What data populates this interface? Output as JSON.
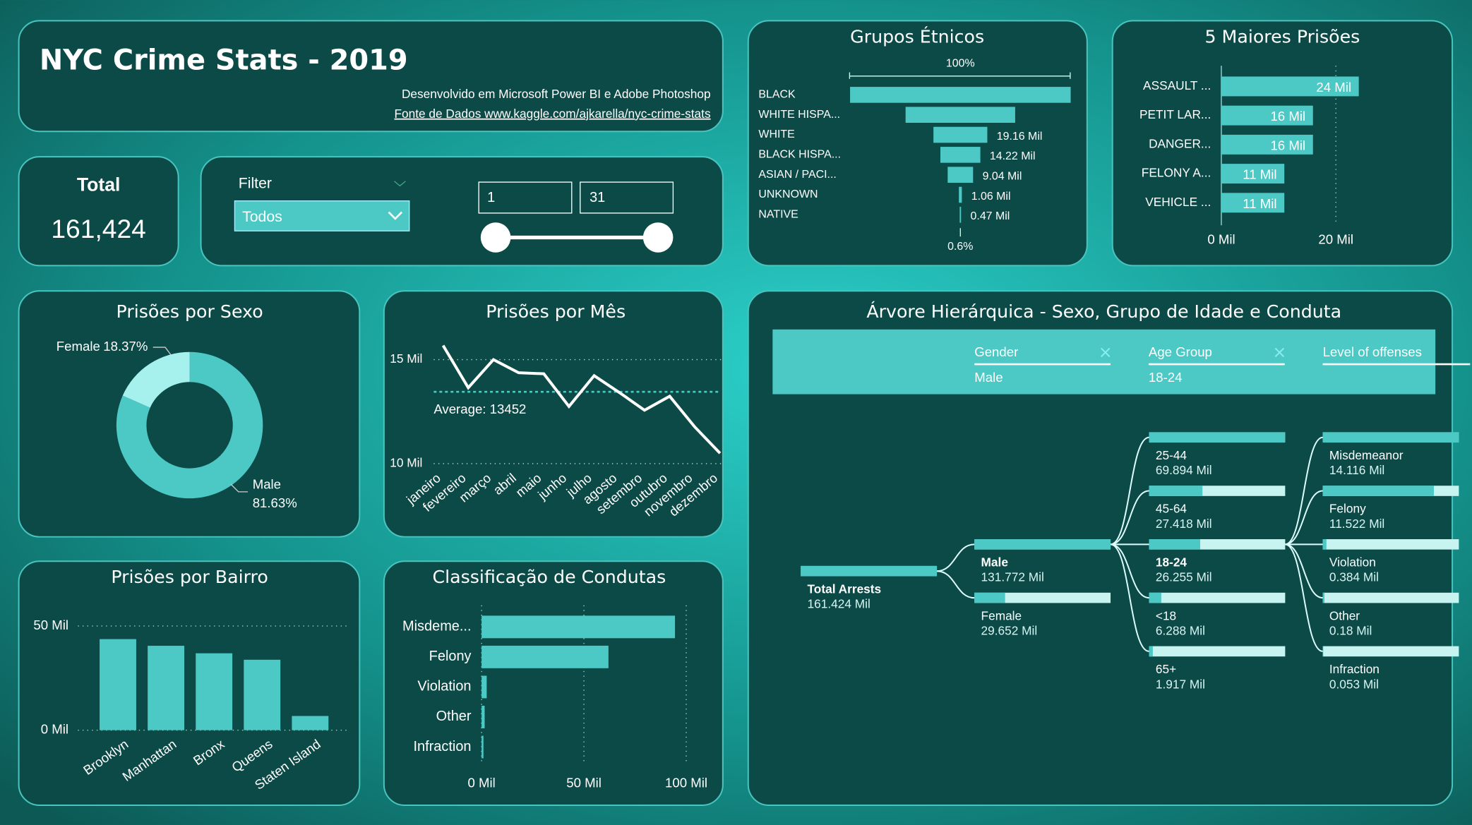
{
  "header": {
    "title": "NYC Crime Stats - 2019",
    "subtitle": "Desenvolvido em Microsoft Power BI e Adobe Photoshop",
    "source": "Fonte de Dados www.kaggle.com/ajkarella/nyc-crime-stats"
  },
  "total": {
    "label": "Total",
    "value": "161,424"
  },
  "filter": {
    "label": "Filter",
    "selected": "Todos",
    "range_from": "1",
    "range_to": "31"
  },
  "chart_data": [
    {
      "type": "funnel",
      "title": "Grupos Étnicos",
      "top_label": "100%",
      "bottom_label": "0.6%",
      "color": "#4cc9c5",
      "categories": [
        "BLACK",
        "WHITE HISPA...",
        "WHITE",
        "BLACK HISPA...",
        "ASIAN / PACI...",
        "UNKNOWN",
        "NATIVE"
      ],
      "values": [
        78.5,
        39,
        19.16,
        14.22,
        9.04,
        1.06,
        0.47
      ],
      "value_labels": [
        null,
        null,
        "19.16 Mil",
        "14.22 Mil",
        "9.04 Mil",
        "1.06 Mil",
        "0.47 Mil"
      ]
    },
    {
      "type": "hbar",
      "title": "5 Maiores Prisões",
      "color": "#4cc9c5",
      "categories": [
        "ASSAULT ...",
        "PETIT LAR...",
        "DANGER...",
        "FELONY A...",
        "VEHICLE ..."
      ],
      "values": [
        24,
        16,
        16,
        11,
        11
      ],
      "value_labels": [
        "24 Mil",
        "16 Mil",
        "16 Mil",
        "11 Mil",
        "11 Mil"
      ],
      "xlim": [
        0,
        35
      ],
      "xticks": [
        {
          "value": 0,
          "label": "0 Mil"
        },
        {
          "value": 20,
          "label": "20 Mil"
        }
      ]
    },
    {
      "type": "donut",
      "title": "Prisões por Sexo",
      "categories": [
        "Male",
        "Female"
      ],
      "values": [
        81.63,
        18.37
      ],
      "value_labels": [
        "81.63%",
        "18.37%"
      ],
      "colors": [
        "#4cc9c5",
        "#a6f1ee"
      ]
    },
    {
      "type": "line",
      "title": "Prisões por Mês",
      "color": "#ffffff",
      "categories": [
        "janeiro",
        "fevereiro",
        "março",
        "abril",
        "maio",
        "junho",
        "julho",
        "agosto",
        "setembro",
        "outubro",
        "novembro",
        "dezembro"
      ],
      "values": [
        15.68,
        13.65,
        15.0,
        14.37,
        14.32,
        12.75,
        14.23,
        13.42,
        12.57,
        13.24,
        11.76,
        10.5
      ],
      "average": {
        "value": 13.452,
        "label": "Average: 13452"
      },
      "ylim": [
        10,
        16
      ],
      "yticks": [
        {
          "value": 10,
          "label": "10 Mil"
        },
        {
          "value": 15,
          "label": "15 Mil"
        }
      ]
    },
    {
      "type": "bar",
      "title": "Prisões por Bairro",
      "color": "#4cc9c5",
      "categories": [
        "Brooklyn",
        "Manhattan",
        "Bronx",
        "Queens",
        "Staten Island"
      ],
      "values": [
        43.7,
        40.5,
        36.9,
        33.8,
        6.8
      ],
      "ylim": [
        0,
        50
      ],
      "yticks": [
        {
          "value": 0,
          "label": "0 Mil"
        },
        {
          "value": 50,
          "label": "50 Mil"
        }
      ]
    },
    {
      "type": "hbar",
      "title": "Classificação de Condutas",
      "color": "#4cc9c5",
      "categories": [
        "Misdeme...",
        "Felony",
        "Violation",
        "Other",
        "Infraction"
      ],
      "values": [
        94.5,
        62,
        2.5,
        1.5,
        0.9
      ],
      "xlim": [
        0,
        100
      ],
      "xticks": [
        {
          "value": 0,
          "label": "0 Mil"
        },
        {
          "value": 50,
          "label": "50 Mil"
        },
        {
          "value": 100,
          "label": "100 Mil"
        }
      ]
    },
    {
      "type": "tree",
      "title": "Árvore Hierárquica - Sexo, Grupo de Idade e Conduta",
      "color": "#4cc9c5",
      "filters": [
        {
          "field": "Gender",
          "value": "Male"
        },
        {
          "field": "Age Group",
          "value": "18-24"
        },
        {
          "field": "Level of offenses"
        }
      ],
      "levels": [
        {
          "selected": 0,
          "nodes": [
            {
              "label": "Total Arrests",
              "value": 161.424,
              "value_label": "161.424 Mil"
            }
          ]
        },
        {
          "selected": 0,
          "nodes": [
            {
              "label": "Male",
              "value": 131.772,
              "value_label": "131.772 Mil"
            },
            {
              "label": "Female",
              "value": 29.652,
              "value_label": "29.652 Mil"
            }
          ]
        },
        {
          "selected": 2,
          "nodes": [
            {
              "label": "25-44",
              "value": 69.894,
              "value_label": "69.894 Mil"
            },
            {
              "label": "45-64",
              "value": 27.418,
              "value_label": "27.418 Mil"
            },
            {
              "label": "18-24",
              "value": 26.255,
              "value_label": "26.255 Mil"
            },
            {
              "label": "<18",
              "value": 6.288,
              "value_label": "6.288 Mil"
            },
            {
              "label": "65+",
              "value": 1.917,
              "value_label": "1.917 Mil"
            }
          ]
        },
        {
          "nodes": [
            {
              "label": "Misdemeanor",
              "value": 14.116,
              "value_label": "14.116 Mil"
            },
            {
              "label": "Felony",
              "value": 11.522,
              "value_label": "11.522 Mil"
            },
            {
              "label": "Violation",
              "value": 0.384,
              "value_label": "0.384 Mil"
            },
            {
              "label": "Other",
              "value": 0.18,
              "value_label": "0.18 Mil"
            },
            {
              "label": "Infraction",
              "value": 0.053,
              "value_label": "0.053 Mil"
            }
          ]
        }
      ]
    }
  ]
}
